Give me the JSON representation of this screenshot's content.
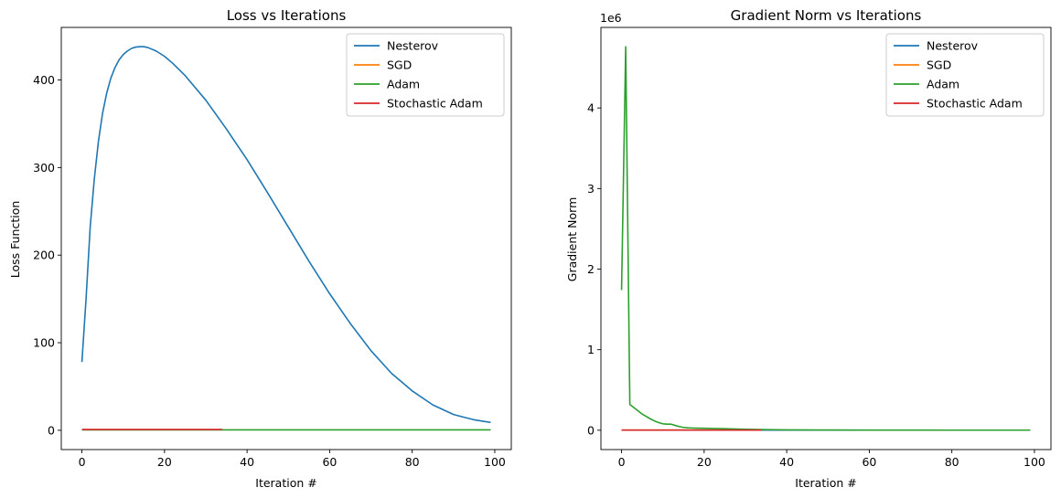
{
  "chart_data": [
    {
      "type": "line",
      "title": "Loss vs Iterations",
      "xlabel": "Iteration #",
      "ylabel": "Loss Function",
      "xlim": [
        -5,
        104
      ],
      "ylim": [
        -22,
        460
      ],
      "xticks": [
        0,
        20,
        40,
        60,
        80,
        100
      ],
      "yticks": [
        0,
        100,
        200,
        300,
        400
      ],
      "tick_labels_x": [
        "0",
        "20",
        "40",
        "60",
        "80",
        "100"
      ],
      "tick_labels_y": [
        "0",
        "100",
        "200",
        "300",
        "400"
      ],
      "legend_position": "upper-right",
      "grid": false,
      "series": [
        {
          "name": "Nesterov",
          "color": "#1f77b4",
          "points": [
            [
              0,
              78
            ],
            [
              1,
              150
            ],
            [
              2,
              232
            ],
            [
              3,
              287
            ],
            [
              4,
              330
            ],
            [
              5,
              362
            ],
            [
              6,
              385
            ],
            [
              7,
              402
            ],
            [
              8,
              414
            ],
            [
              9,
              423
            ],
            [
              10,
              429
            ],
            [
              11,
              433
            ],
            [
              12,
              436
            ],
            [
              13,
              437.5
            ],
            [
              14,
              438
            ],
            [
              15,
              438
            ],
            [
              16,
              437
            ],
            [
              18,
              433
            ],
            [
              20,
              427
            ],
            [
              22,
              419
            ],
            [
              25,
              405
            ],
            [
              30,
              377
            ],
            [
              35,
              344
            ],
            [
              40,
              309
            ],
            [
              45,
              271
            ],
            [
              50,
              232
            ],
            [
              55,
              193
            ],
            [
              60,
              156
            ],
            [
              65,
              122
            ],
            [
              70,
              91
            ],
            [
              75,
              65
            ],
            [
              80,
              45
            ],
            [
              85,
              29
            ],
            [
              90,
              18
            ],
            [
              95,
              12
            ],
            [
              99,
              9
            ]
          ]
        },
        {
          "name": "SGD",
          "color": "#ff7f0e",
          "points": [
            [
              0,
              0.8
            ],
            [
              34,
              0.8
            ]
          ]
        },
        {
          "name": "Adam",
          "color": "#2ca02c",
          "points": [
            [
              0,
              0.5
            ],
            [
              99,
              0.5
            ]
          ]
        },
        {
          "name": "Stochastic Adam",
          "color": "#d62728",
          "points": [
            [
              0,
              0.9
            ],
            [
              34,
              0.9
            ]
          ]
        }
      ]
    },
    {
      "type": "line",
      "title": "Gradient Norm vs Iterations",
      "xlabel": "Iteration #",
      "ylabel": "Gradient Norm",
      "y_offset_label": "1e6",
      "xlim": [
        -5,
        104
      ],
      "ylim": [
        -0.24,
        5.0
      ],
      "xticks": [
        0,
        20,
        40,
        60,
        80,
        100
      ],
      "yticks": [
        0,
        1,
        2,
        3,
        4
      ],
      "tick_labels_x": [
        "0",
        "20",
        "40",
        "60",
        "80",
        "100"
      ],
      "tick_labels_y": [
        "0",
        "1",
        "2",
        "3",
        "4"
      ],
      "legend_position": "upper-right",
      "grid": false,
      "series": [
        {
          "name": "Nesterov",
          "color": "#1f77b4",
          "points": [
            [
              0,
              0.001
            ],
            [
              99,
              0.001
            ]
          ]
        },
        {
          "name": "SGD",
          "color": "#ff7f0e",
          "points": [
            [
              0,
              0.002
            ],
            [
              34,
              0.002
            ]
          ]
        },
        {
          "name": "Adam",
          "color": "#2ca02c",
          "points": [
            [
              0,
              1.74
            ],
            [
              1,
              4.76
            ],
            [
              2,
              0.32
            ],
            [
              3,
              0.28
            ],
            [
              4,
              0.24
            ],
            [
              5,
              0.2
            ],
            [
              6,
              0.17
            ],
            [
              7,
              0.14
            ],
            [
              8,
              0.115
            ],
            [
              9,
              0.095
            ],
            [
              10,
              0.08
            ],
            [
              11,
              0.075
            ],
            [
              12,
              0.075
            ],
            [
              13,
              0.06
            ],
            [
              14,
              0.045
            ],
            [
              15,
              0.035
            ],
            [
              16,
              0.03
            ],
            [
              17,
              0.028
            ],
            [
              18,
              0.026
            ],
            [
              20,
              0.024
            ],
            [
              22,
              0.022
            ],
            [
              24,
              0.02
            ],
            [
              26,
              0.017
            ],
            [
              28,
              0.015
            ],
            [
              30,
              0.012
            ],
            [
              35,
              0.008
            ],
            [
              40,
              0.005
            ],
            [
              50,
              0.003
            ],
            [
              60,
              0.002
            ],
            [
              70,
              0.0015
            ],
            [
              80,
              0.001
            ],
            [
              90,
              0.001
            ],
            [
              99,
              0.001
            ]
          ]
        },
        {
          "name": "Stochastic Adam",
          "color": "#d62728",
          "points": [
            [
              0,
              0.002
            ],
            [
              34,
              0.002
            ]
          ]
        }
      ]
    }
  ]
}
